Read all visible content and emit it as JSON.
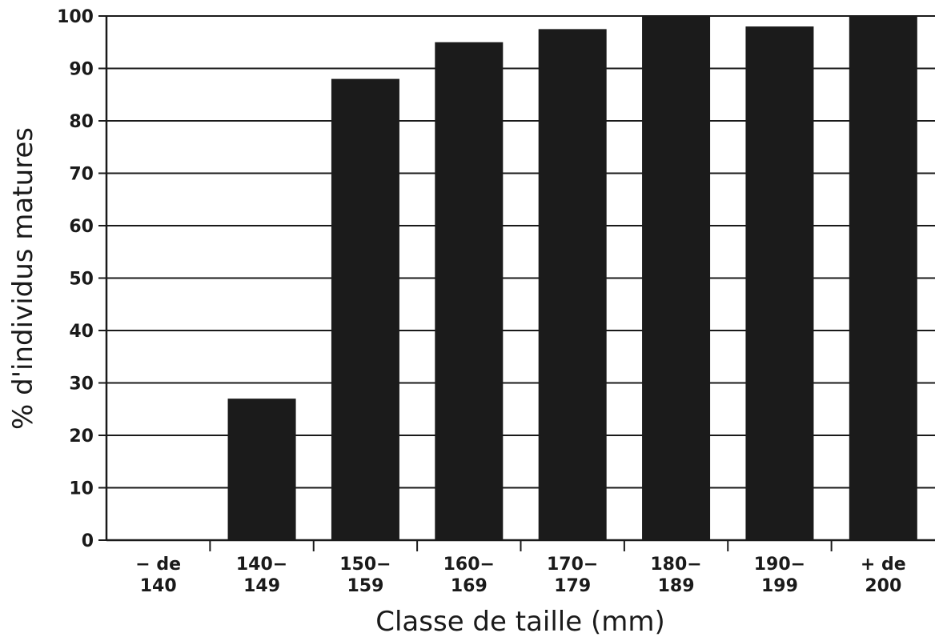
{
  "chart_data": {
    "type": "bar",
    "categories": [
      [
        "− de",
        "140"
      ],
      [
        "140−",
        "149"
      ],
      [
        "150−",
        "159"
      ],
      [
        "160−",
        "169"
      ],
      [
        "170−",
        "179"
      ],
      [
        "180−",
        "189"
      ],
      [
        "190−",
        "199"
      ],
      [
        "+ de",
        "200"
      ]
    ],
    "values": [
      0,
      27,
      88,
      95,
      97.5,
      100,
      98,
      100
    ],
    "title": "",
    "xlabel": "Classe de taille (mm)",
    "ylabel": "% d'individus matures",
    "ylim": [
      0,
      100
    ],
    "yticks": [
      0,
      10,
      20,
      30,
      40,
      50,
      60,
      70,
      80,
      90,
      100
    ],
    "grid": true,
    "bar_color": "#1b1b1b",
    "grid_color": "#1a1a1a"
  }
}
